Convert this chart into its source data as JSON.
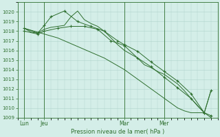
{
  "title": "Pression niveau de la mer( hPa )",
  "bg_color": "#d4eee8",
  "grid_color": "#b0d4cc",
  "line_color": "#2d6e2d",
  "ylim": [
    1009,
    1021
  ],
  "yticks": [
    1009,
    1010,
    1011,
    1012,
    1013,
    1014,
    1015,
    1016,
    1017,
    1018,
    1019,
    1020
  ],
  "xlim": [
    0,
    30
  ],
  "xtick_labels": [
    "Lun",
    "Jeu",
    "Mar",
    "Mer"
  ],
  "xtick_positions": [
    1,
    4,
    16,
    22
  ],
  "vline_positions": [
    1,
    4,
    16,
    22
  ],
  "series": [
    {
      "x": [
        1,
        2,
        3,
        4,
        5,
        6,
        7,
        8,
        9,
        10,
        11,
        12,
        13,
        14,
        15,
        16,
        17,
        18,
        19,
        20,
        21,
        22,
        23,
        24,
        25,
        26,
        27,
        28,
        29
      ],
      "y": [
        1018.3,
        1017.9,
        1017.8,
        1018.2,
        1018.4,
        1018.5,
        1018.6,
        1019.5,
        1020.1,
        1019.2,
        1018.8,
        1018.5,
        1018.0,
        1017.3,
        1016.6,
        1016.0,
        1015.6,
        1015.2,
        1014.5,
        1014.2,
        1013.8,
        1013.5,
        1013.0,
        1012.5,
        1011.8,
        1011.0,
        1010.2,
        1009.5,
        1009.0
      ],
      "markers": false
    },
    {
      "x": [
        1,
        3,
        4,
        5,
        7,
        9,
        11,
        13,
        15,
        16,
        18,
        20,
        22,
        24,
        26,
        28,
        29
      ],
      "y": [
        1018.3,
        1017.8,
        1018.6,
        1019.5,
        1020.1,
        1019.0,
        1018.5,
        1018.0,
        1017.0,
        1016.6,
        1015.9,
        1014.8,
        1013.8,
        1012.8,
        1011.5,
        1009.5,
        1009.2
      ],
      "markers": true
    },
    {
      "x": [
        1,
        3,
        4,
        6,
        8,
        10,
        12,
        14,
        16,
        18,
        20,
        22,
        24,
        26,
        28,
        29
      ],
      "y": [
        1018.0,
        1017.7,
        1018.0,
        1018.3,
        1018.5,
        1018.5,
        1018.2,
        1017.0,
        1016.5,
        1015.2,
        1014.3,
        1013.2,
        1012.1,
        1011.0,
        1009.5,
        1011.8
      ],
      "markers": true
    },
    {
      "x": [
        1,
        2,
        3,
        4,
        5,
        6,
        7,
        8,
        9,
        10,
        11,
        12,
        13,
        14,
        15,
        16,
        17,
        18,
        19,
        20,
        21,
        22,
        23,
        24,
        25,
        26,
        27,
        28,
        29
      ],
      "y": [
        1018.3,
        1018.1,
        1017.9,
        1017.7,
        1017.5,
        1017.3,
        1017.0,
        1016.7,
        1016.4,
        1016.1,
        1015.8,
        1015.5,
        1015.2,
        1014.8,
        1014.4,
        1014.0,
        1013.5,
        1013.0,
        1012.5,
        1012.0,
        1011.5,
        1011.0,
        1010.5,
        1010.0,
        1009.7,
        1009.5,
        1009.5,
        1009.5,
        1011.8
      ],
      "markers": false
    }
  ]
}
